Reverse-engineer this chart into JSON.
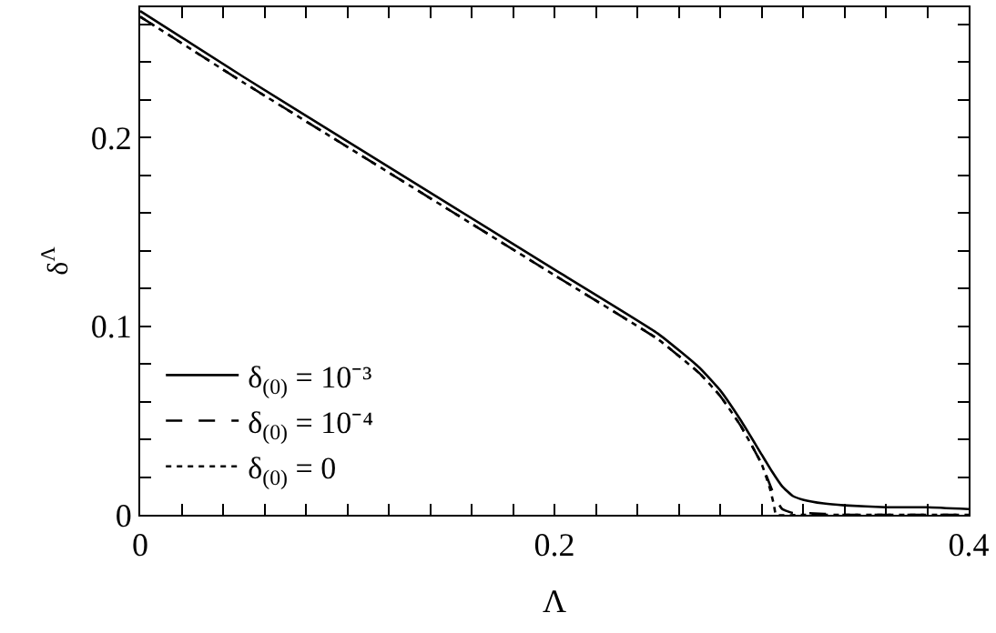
{
  "chart_data": {
    "type": "line",
    "xlabel": "Λ",
    "ylabel": "δ$^{Λ}$",
    "xlim": [
      0,
      0.4
    ],
    "ylim": [
      0,
      0.269
    ],
    "xticks": [
      0,
      {
        "value": 0.02,
        "label": null
      },
      {
        "value": 0.04,
        "label": null
      },
      {
        "value": 0.06,
        "label": null
      },
      {
        "value": 0.08,
        "label": null
      },
      {
        "value": 0.1,
        "label": null
      },
      {
        "value": 0.12,
        "label": null
      },
      {
        "value": 0.14,
        "label": null
      },
      {
        "value": 0.16,
        "label": null
      },
      {
        "value": 0.18,
        "label": null
      },
      0.2,
      {
        "value": 0.22,
        "label": null
      },
      {
        "value": 0.24,
        "label": null
      },
      {
        "value": 0.26,
        "label": null
      },
      {
        "value": 0.28,
        "label": null
      },
      {
        "value": 0.3,
        "label": null
      },
      {
        "value": 0.32,
        "label": null
      },
      {
        "value": 0.34,
        "label": null
      },
      {
        "value": 0.36,
        "label": null
      },
      {
        "value": 0.38,
        "label": null
      },
      0.4
    ],
    "yticks": [
      0,
      {
        "value": 0.02,
        "label": null
      },
      {
        "value": 0.04,
        "label": null
      },
      {
        "value": 0.06,
        "label": null
      },
      {
        "value": 0.08,
        "label": null
      },
      0.1,
      {
        "value": 0.12,
        "label": null
      },
      {
        "value": 0.14,
        "label": null
      },
      {
        "value": 0.16,
        "label": null
      },
      {
        "value": 0.18,
        "label": null
      },
      0.2,
      {
        "value": 0.22,
        "label": null
      },
      {
        "value": 0.24,
        "label": null
      },
      {
        "value": 0.26,
        "label": null
      }
    ],
    "grid": false,
    "legend": "bottom left",
    "marker": "none",
    "series": [
      {
        "name": "δ$_{(0)}$ = 10⁻³",
        "color": "#000000",
        "line_style": "solid",
        "x": [
          0,
          0.05,
          0.1,
          0.15,
          0.2,
          0.25,
          0.27,
          0.28,
          0.29,
          0.3,
          0.305,
          0.31,
          0.315,
          0.32,
          0.33,
          0.34,
          0.36,
          0.38,
          0.4
        ],
        "values": [
          0.267,
          0.232,
          0.198,
          0.164,
          0.13,
          0.096,
          0.078,
          0.066,
          0.05,
          0.032,
          0.023,
          0.015,
          0.01,
          0.008,
          0.006,
          0.005,
          0.004,
          0.004,
          0.003
        ]
      },
      {
        "name": "δ$_{(0)}$ = 10⁻⁴",
        "color": "#000000",
        "line_style": "dashed",
        "x": [
          0,
          0.05,
          0.1,
          0.15,
          0.2,
          0.25,
          0.27,
          0.28,
          0.29,
          0.3,
          0.304,
          0.307,
          0.31,
          0.315,
          0.32,
          0.34,
          0.4
        ],
        "values": [
          0.264,
          0.229,
          0.195,
          0.161,
          0.127,
          0.093,
          0.075,
          0.063,
          0.047,
          0.027,
          0.016,
          0.008,
          0.003,
          0.001,
          0.001,
          0,
          0
        ]
      },
      {
        "name": "δ$_{(0)}$ = 0",
        "color": "#000000",
        "line_style": "dotted",
        "x": [
          0,
          0.05,
          0.1,
          0.15,
          0.2,
          0.25,
          0.27,
          0.28,
          0.29,
          0.3,
          0.304,
          0.306,
          0.307,
          0.32,
          0.4
        ],
        "values": [
          0.264,
          0.229,
          0.195,
          0.161,
          0.127,
          0.093,
          0.075,
          0.063,
          0.047,
          0.027,
          0.014,
          0.005,
          0,
          0,
          0
        ]
      }
    ]
  }
}
